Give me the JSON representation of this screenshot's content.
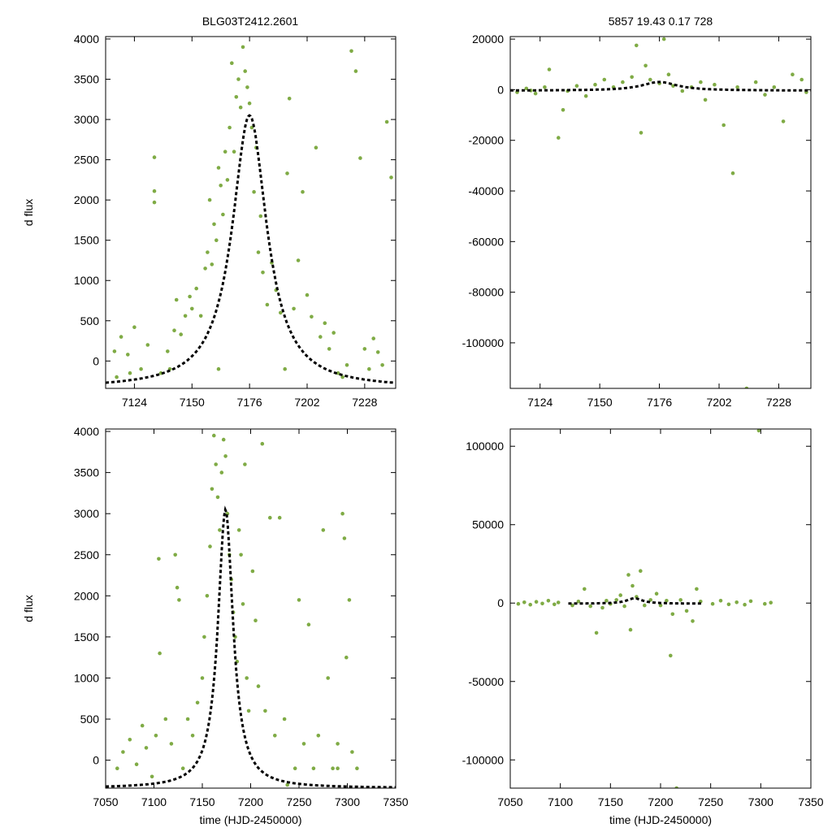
{
  "figure": {
    "title": "BLG03T2412.2601",
    "subtitle": "5857  19.43  0.17  728"
  },
  "style": {
    "point_color": "#7fab45",
    "model_color": "#000000"
  },
  "chart_data": [
    {
      "id": "top-left",
      "type": "scatter",
      "title": "",
      "xlabel": "",
      "ylabel": "d flux",
      "xlim": [
        7111,
        7242
      ],
      "ylim": [
        -340,
        4030
      ],
      "xticks": [
        7124,
        7150,
        7176,
        7202,
        7228
      ],
      "yticks": [
        0,
        500,
        1000,
        1500,
        2000,
        2500,
        3000,
        3500,
        4000
      ],
      "model": {
        "t0": 7176,
        "peak": 3050,
        "baseline": -340,
        "width": 9.5
      },
      "points": [
        [
          7115,
          120
        ],
        [
          7118,
          300
        ],
        [
          7121,
          80
        ],
        [
          7124,
          420
        ],
        [
          7127,
          -100
        ],
        [
          7130,
          200
        ],
        [
          7133,
          2530
        ],
        [
          7133,
          2110
        ],
        [
          7133,
          1970
        ],
        [
          7136,
          -150
        ],
        [
          7139,
          120
        ],
        [
          7142,
          380
        ],
        [
          7143,
          760
        ],
        [
          7145,
          330
        ],
        [
          7147,
          560
        ],
        [
          7149,
          800
        ],
        [
          7150,
          650
        ],
        [
          7152,
          900
        ],
        [
          7154,
          560
        ],
        [
          7156,
          1150
        ],
        [
          7157,
          1350
        ],
        [
          7158,
          2000
        ],
        [
          7159,
          1200
        ],
        [
          7160,
          1700
        ],
        [
          7161,
          1500
        ],
        [
          7162,
          2400
        ],
        [
          7163,
          2180
        ],
        [
          7164,
          1820
        ],
        [
          7165,
          2600
        ],
        [
          7166,
          2250
        ],
        [
          7167,
          2900
        ],
        [
          7168,
          3700
        ],
        [
          7169,
          2600
        ],
        [
          7170,
          3280
        ],
        [
          7171,
          3500
        ],
        [
          7172,
          3150
        ],
        [
          7173,
          3900
        ],
        [
          7174,
          3600
        ],
        [
          7175,
          3400
        ],
        [
          7176,
          3200
        ],
        [
          7177,
          2900
        ],
        [
          7178,
          2100
        ],
        [
          7179,
          2650
        ],
        [
          7180,
          1350
        ],
        [
          7181,
          1800
        ],
        [
          7182,
          1100
        ],
        [
          7184,
          700
        ],
        [
          7186,
          1220
        ],
        [
          7188,
          880
        ],
        [
          7190,
          600
        ],
        [
          7193,
          2330
        ],
        [
          7194,
          3260
        ],
        [
          7196,
          650
        ],
        [
          7198,
          1250
        ],
        [
          7200,
          2100
        ],
        [
          7202,
          820
        ],
        [
          7204,
          550
        ],
        [
          7206,
          2650
        ],
        [
          7208,
          300
        ],
        [
          7210,
          470
        ],
        [
          7212,
          150
        ],
        [
          7214,
          350
        ],
        [
          7216,
          -150
        ],
        [
          7218,
          -200
        ],
        [
          7220,
          -50
        ],
        [
          7222,
          3850
        ],
        [
          7224,
          3600
        ],
        [
          7226,
          2520
        ],
        [
          7228,
          150
        ],
        [
          7230,
          -100
        ],
        [
          7232,
          280
        ],
        [
          7234,
          110
        ],
        [
          7236,
          -50
        ],
        [
          7238,
          2970
        ],
        [
          7240,
          2280
        ],
        [
          7116,
          -200
        ],
        [
          7122,
          -150
        ],
        [
          7140,
          -100
        ],
        [
          7162,
          -100
        ],
        [
          7192,
          -100
        ]
      ]
    },
    {
      "id": "top-right",
      "type": "scatter",
      "title": "",
      "xlabel": "",
      "ylabel": "",
      "xlim": [
        7111,
        7242
      ],
      "ylim": [
        -118000,
        21000
      ],
      "xticks": [
        7124,
        7150,
        7176,
        7202,
        7228
      ],
      "yticks": [
        20000,
        0,
        -20000,
        -40000,
        -60000,
        -80000,
        -100000
      ],
      "model": {
        "t0": 7176,
        "peak": 3050,
        "baseline": -340,
        "width": 9.5
      },
      "points": [
        [
          7114,
          -1000
        ],
        [
          7118,
          500
        ],
        [
          7122,
          -1500
        ],
        [
          7126,
          1000
        ],
        [
          7128,
          8000
        ],
        [
          7132,
          -19000
        ],
        [
          7134,
          -8000
        ],
        [
          7136,
          -500
        ],
        [
          7140,
          1500
        ],
        [
          7144,
          -2500
        ],
        [
          7148,
          2000
        ],
        [
          7152,
          4000
        ],
        [
          7156,
          1000
        ],
        [
          7160,
          3000
        ],
        [
          7164,
          5000
        ],
        [
          7166,
          17500
        ],
        [
          7168,
          -17000
        ],
        [
          7170,
          9500
        ],
        [
          7172,
          4000
        ],
        [
          7176,
          2500
        ],
        [
          7178,
          20000
        ],
        [
          7180,
          6000
        ],
        [
          7182,
          1500
        ],
        [
          7186,
          -500
        ],
        [
          7190,
          1000
        ],
        [
          7194,
          3000
        ],
        [
          7196,
          -4000
        ],
        [
          7200,
          2000
        ],
        [
          7204,
          -14000
        ],
        [
          7208,
          -33000
        ],
        [
          7210,
          1000
        ],
        [
          7214,
          -118000
        ],
        [
          7218,
          3000
        ],
        [
          7222,
          -2000
        ],
        [
          7226,
          1000
        ],
        [
          7230,
          -12500
        ],
        [
          7234,
          6000
        ],
        [
          7238,
          4000
        ],
        [
          7240,
          -1000
        ],
        [
          7120,
          -300
        ]
      ]
    },
    {
      "id": "bottom-left",
      "type": "scatter",
      "title": "",
      "xlabel": "time (HJD-2450000)",
      "ylabel": "d flux",
      "xlim": [
        7050,
        7350
      ],
      "ylim": [
        -340,
        4030
      ],
      "xticks": [
        7050,
        7100,
        7150,
        7200,
        7250,
        7300,
        7350
      ],
      "yticks": [
        0,
        500,
        1000,
        1500,
        2000,
        2500,
        3000,
        3500,
        4000
      ],
      "model": {
        "t0": 7174,
        "peak": 3050,
        "baseline": -340,
        "width": 9.5
      },
      "points": [
        [
          7062,
          -100
        ],
        [
          7068,
          100
        ],
        [
          7075,
          250
        ],
        [
          7082,
          -50
        ],
        [
          7088,
          420
        ],
        [
          7092,
          150
        ],
        [
          7098,
          -200
        ],
        [
          7102,
          300
        ],
        [
          7105,
          2450
        ],
        [
          7106,
          1300
        ],
        [
          7112,
          500
        ],
        [
          7118,
          200
        ],
        [
          7122,
          2500
        ],
        [
          7124,
          2100
        ],
        [
          7126,
          1950
        ],
        [
          7130,
          -100
        ],
        [
          7135,
          500
        ],
        [
          7140,
          300
        ],
        [
          7145,
          700
        ],
        [
          7150,
          1000
        ],
        [
          7152,
          1500
        ],
        [
          7155,
          2000
        ],
        [
          7158,
          2600
        ],
        [
          7160,
          3300
        ],
        [
          7162,
          3950
        ],
        [
          7164,
          3600
        ],
        [
          7166,
          3200
        ],
        [
          7168,
          2800
        ],
        [
          7170,
          3500
        ],
        [
          7172,
          3900
        ],
        [
          7174,
          3700
        ],
        [
          7176,
          3000
        ],
        [
          7178,
          2500
        ],
        [
          7180,
          2200
        ],
        [
          7182,
          1800
        ],
        [
          7184,
          1500
        ],
        [
          7186,
          1200
        ],
        [
          7188,
          2800
        ],
        [
          7190,
          2500
        ],
        [
          7192,
          1900
        ],
        [
          7194,
          3600
        ],
        [
          7196,
          1000
        ],
        [
          7198,
          600
        ],
        [
          7202,
          2300
        ],
        [
          7205,
          1700
        ],
        [
          7208,
          900
        ],
        [
          7212,
          3850
        ],
        [
          7215,
          600
        ],
        [
          7220,
          2950
        ],
        [
          7225,
          300
        ],
        [
          7230,
          2950
        ],
        [
          7235,
          500
        ],
        [
          7238,
          -300
        ],
        [
          7250,
          1950
        ],
        [
          7255,
          200
        ],
        [
          7260,
          1650
        ],
        [
          7265,
          -100
        ],
        [
          7270,
          300
        ],
        [
          7275,
          2800
        ],
        [
          7280,
          1000
        ],
        [
          7285,
          -100
        ],
        [
          7290,
          200
        ],
        [
          7295,
          3000
        ],
        [
          7297,
          2700
        ],
        [
          7299,
          1250
        ],
        [
          7302,
          1950
        ],
        [
          7305,
          100
        ],
        [
          7310,
          -100
        ],
        [
          7246,
          -100
        ],
        [
          7290,
          -100
        ]
      ]
    },
    {
      "id": "bottom-right",
      "type": "scatter",
      "title": "",
      "xlabel": "time (HJD-2450000)",
      "ylabel": "",
      "xlim": [
        7050,
        7350
      ],
      "ylim": [
        -118000,
        111000
      ],
      "xticks": [
        7050,
        7100,
        7150,
        7200,
        7250,
        7300,
        7350
      ],
      "yticks": [
        100000,
        50000,
        0,
        -50000,
        -100000
      ],
      "model": {
        "t0": 7174,
        "peak": 3050,
        "baseline": -340,
        "width": 9.5,
        "segment": [
          7108,
          7242
        ]
      },
      "points": [
        [
          7058,
          -500
        ],
        [
          7064,
          500
        ],
        [
          7070,
          -1000
        ],
        [
          7076,
          800
        ],
        [
          7082,
          -300
        ],
        [
          7088,
          1500
        ],
        [
          7094,
          -800
        ],
        [
          7098,
          400
        ],
        [
          7112,
          -1500
        ],
        [
          7118,
          1000
        ],
        [
          7124,
          9000
        ],
        [
          7130,
          -2000
        ],
        [
          7136,
          -19000
        ],
        [
          7142,
          -3000
        ],
        [
          7146,
          1500
        ],
        [
          7150,
          -500
        ],
        [
          7156,
          2000
        ],
        [
          7160,
          5000
        ],
        [
          7164,
          -2000
        ],
        [
          7168,
          18000
        ],
        [
          7170,
          -17000
        ],
        [
          7172,
          11000
        ],
        [
          7176,
          4000
        ],
        [
          7180,
          20500
        ],
        [
          7184,
          -1500
        ],
        [
          7190,
          2000
        ],
        [
          7196,
          6000
        ],
        [
          7200,
          -1500
        ],
        [
          7206,
          1500
        ],
        [
          7210,
          -33500
        ],
        [
          7212,
          -7000
        ],
        [
          7216,
          -118000
        ],
        [
          7220,
          2000
        ],
        [
          7226,
          -5000
        ],
        [
          7232,
          -11500
        ],
        [
          7236,
          9000
        ],
        [
          7240,
          1000
        ],
        [
          7252,
          -500
        ],
        [
          7260,
          1500
        ],
        [
          7268,
          -800
        ],
        [
          7276,
          500
        ],
        [
          7284,
          -1000
        ],
        [
          7290,
          1200
        ],
        [
          7298,
          110000
        ],
        [
          7304,
          -500
        ],
        [
          7310,
          300
        ]
      ]
    }
  ]
}
